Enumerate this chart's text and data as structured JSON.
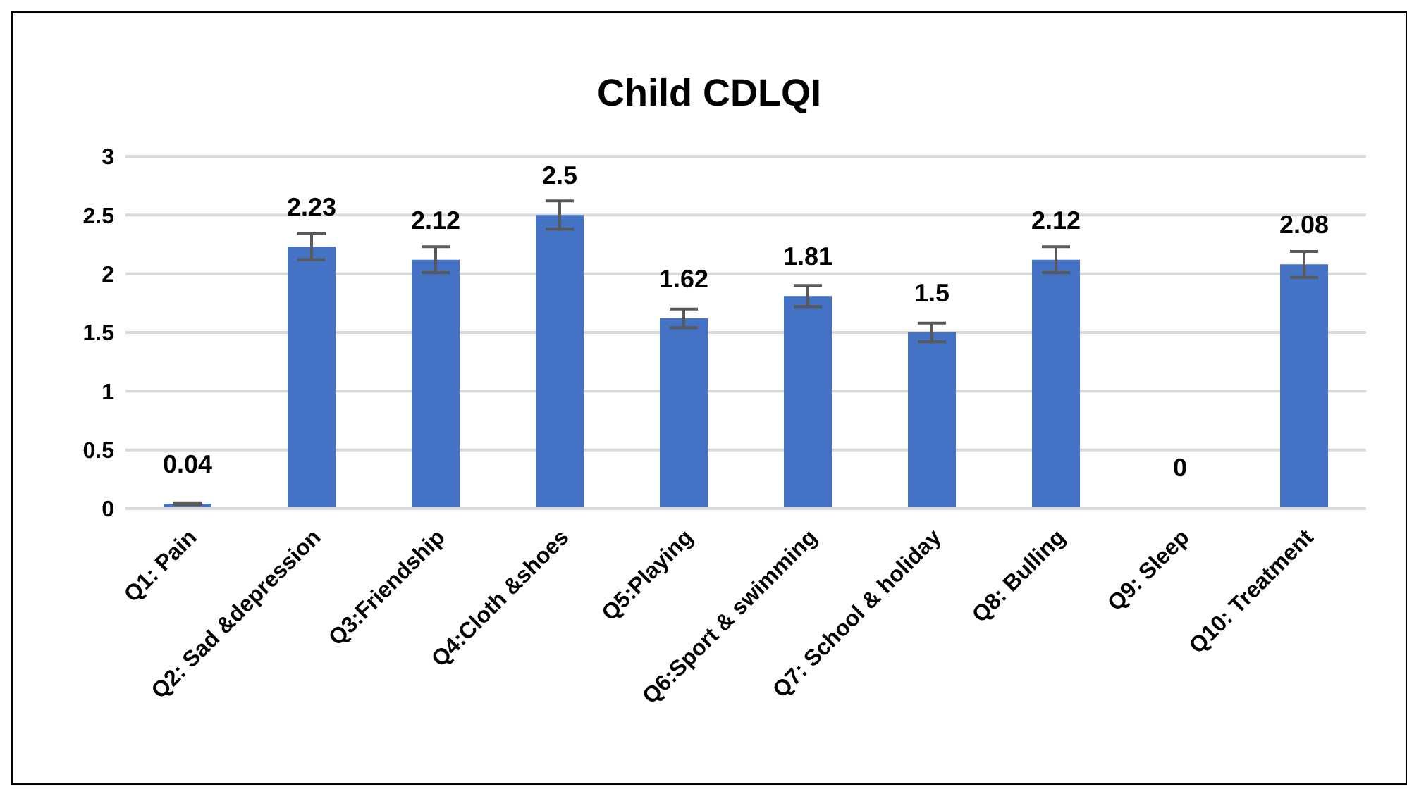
{
  "chart_data": {
    "type": "bar",
    "title": "Child CDLQI",
    "categories": [
      "Q1: Pain",
      "Q2: Sad &depression",
      "Q3:Friendship",
      "Q4:Cloth &shoes",
      "Q5:Playing",
      "Q6:Sport & swimming",
      "Q7: School & holiday",
      "Q8: Bulling",
      "Q9: Sleep",
      "Q10: Treatment"
    ],
    "values": [
      0.04,
      2.23,
      2.12,
      2.5,
      1.62,
      1.81,
      1.5,
      2.12,
      0,
      2.08
    ],
    "errors": [
      0.01,
      0.11,
      0.11,
      0.12,
      0.08,
      0.09,
      0.08,
      0.11,
      null,
      0.11
    ],
    "color": "#4472c4",
    "ylim": [
      0,
      3
    ],
    "yticks": [
      0,
      0.5,
      1,
      1.5,
      2,
      2.5,
      3
    ],
    "grid": "y",
    "data_labels": true
  }
}
